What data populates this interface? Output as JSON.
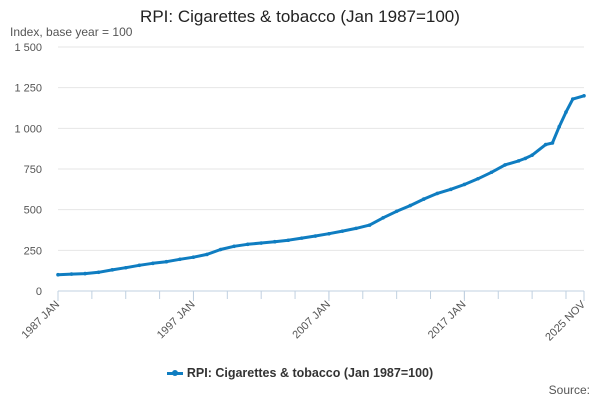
{
  "chart_data": {
    "type": "line",
    "title": "RPI: Cigarettes & tobacco (Jan 1987=100)",
    "ylabel": "Index, base year = 100",
    "xlabel": "",
    "xlim": [
      1987.0,
      2025.83
    ],
    "ylim": [
      0,
      1500
    ],
    "y_ticks": [
      {
        "value": 0,
        "label": "0"
      },
      {
        "value": 250,
        "label": "250"
      },
      {
        "value": 500,
        "label": "500"
      },
      {
        "value": 750,
        "label": "750"
      },
      {
        "value": 1000,
        "label": "1 000"
      },
      {
        "value": 1250,
        "label": "1 250"
      },
      {
        "value": 1500,
        "label": "1 500"
      }
    ],
    "x_ticks": [
      {
        "value": 1987.0,
        "label": "1987 JAN"
      },
      {
        "value": 1997.0,
        "label": "1997 JAN"
      },
      {
        "value": 2007.0,
        "label": "2007 JAN"
      },
      {
        "value": 2017.0,
        "label": "2017 JAN"
      },
      {
        "value": 2025.83,
        "label": "2025 NOV"
      }
    ],
    "grid": true,
    "legend_position": "bottom",
    "series": [
      {
        "name": "RPI: Cigarettes & tobacco (Jan 1987=100)",
        "color": "#0f7dc1",
        "x": [
          1987.0,
          1988.0,
          1989.0,
          1990.0,
          1991.0,
          1992.0,
          1993.0,
          1994.0,
          1995.0,
          1996.0,
          1997.0,
          1998.0,
          1999.0,
          2000.0,
          2001.0,
          2002.0,
          2003.0,
          2004.0,
          2005.0,
          2006.0,
          2007.0,
          2008.0,
          2009.0,
          2010.0,
          2011.0,
          2012.0,
          2013.0,
          2014.0,
          2015.0,
          2016.0,
          2017.0,
          2018.0,
          2019.0,
          2020.0,
          2021.0,
          2021.5,
          2022.0,
          2023.0,
          2023.5,
          2024.0,
          2024.5,
          2025.0,
          2025.83
        ],
        "y": [
          100,
          104,
          107,
          115,
          130,
          143,
          158,
          170,
          180,
          195,
          208,
          225,
          255,
          275,
          287,
          295,
          303,
          312,
          325,
          338,
          352,
          368,
          385,
          405,
          450,
          490,
          525,
          565,
          600,
          625,
          655,
          690,
          730,
          775,
          800,
          815,
          835,
          900,
          910,
          1010,
          1100,
          1180,
          1200
        ]
      }
    ]
  },
  "source": "Source:"
}
